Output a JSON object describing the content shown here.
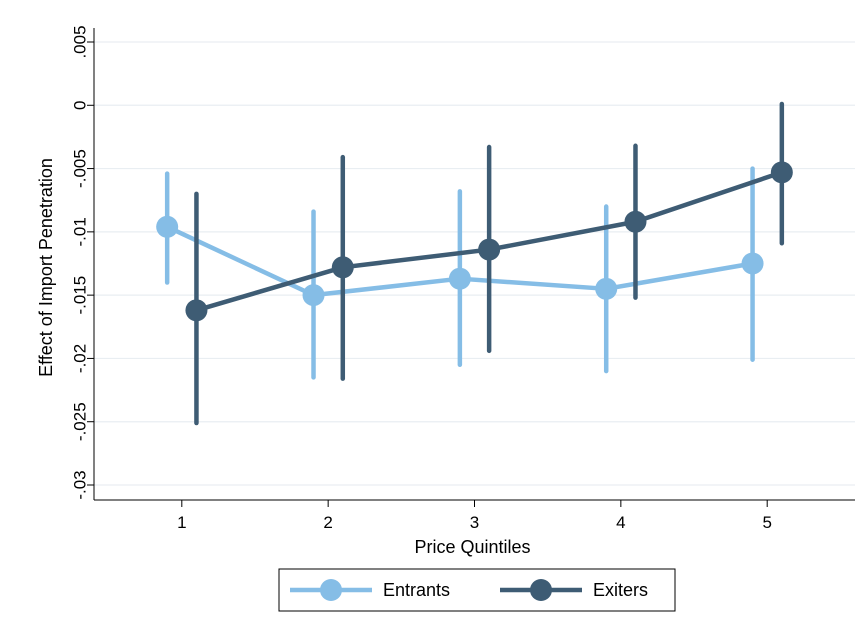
{
  "chart_data": {
    "type": "line",
    "title": "",
    "xlabel": "Price Quintiles",
    "ylabel": "Effect of Import Penetration",
    "x": [
      1,
      2,
      3,
      4,
      5
    ],
    "x_tick_labels": [
      "1",
      "2",
      "3",
      "4",
      "5"
    ],
    "xlim": [
      0.4,
      5.6
    ],
    "ylim": [
      -0.03,
      0.005
    ],
    "y_ticks": [
      0.005,
      0,
      -0.005,
      -0.01,
      -0.015,
      -0.02,
      -0.025,
      -0.03
    ],
    "y_tick_labels": [
      ".005",
      "0",
      "-.005",
      "-.01",
      "-.015",
      "-.02",
      "-.025",
      "-.03"
    ],
    "grid": true,
    "legend_position": "bottom",
    "series": [
      {
        "name": "Entrants",
        "color": "#85bde6",
        "x_offset": -0.1,
        "values": [
          -0.0096,
          -0.015,
          -0.0137,
          -0.0145,
          -0.0125
        ],
        "ci_low": [
          -0.014,
          -0.0215,
          -0.0205,
          -0.021,
          -0.0201
        ],
        "ci_high": [
          -0.0054,
          -0.0084,
          -0.0068,
          -0.008,
          -0.005
        ]
      },
      {
        "name": "Exiters",
        "color": "#3e5c74",
        "x_offset": 0.1,
        "values": [
          -0.0162,
          -0.0128,
          -0.0114,
          -0.0092,
          -0.0053
        ],
        "ci_low": [
          -0.0251,
          -0.0216,
          -0.0194,
          -0.0152,
          -0.0109
        ],
        "ci_high": [
          -0.007,
          -0.0041,
          -0.0033,
          -0.0032,
          0.0001
        ]
      }
    ]
  }
}
